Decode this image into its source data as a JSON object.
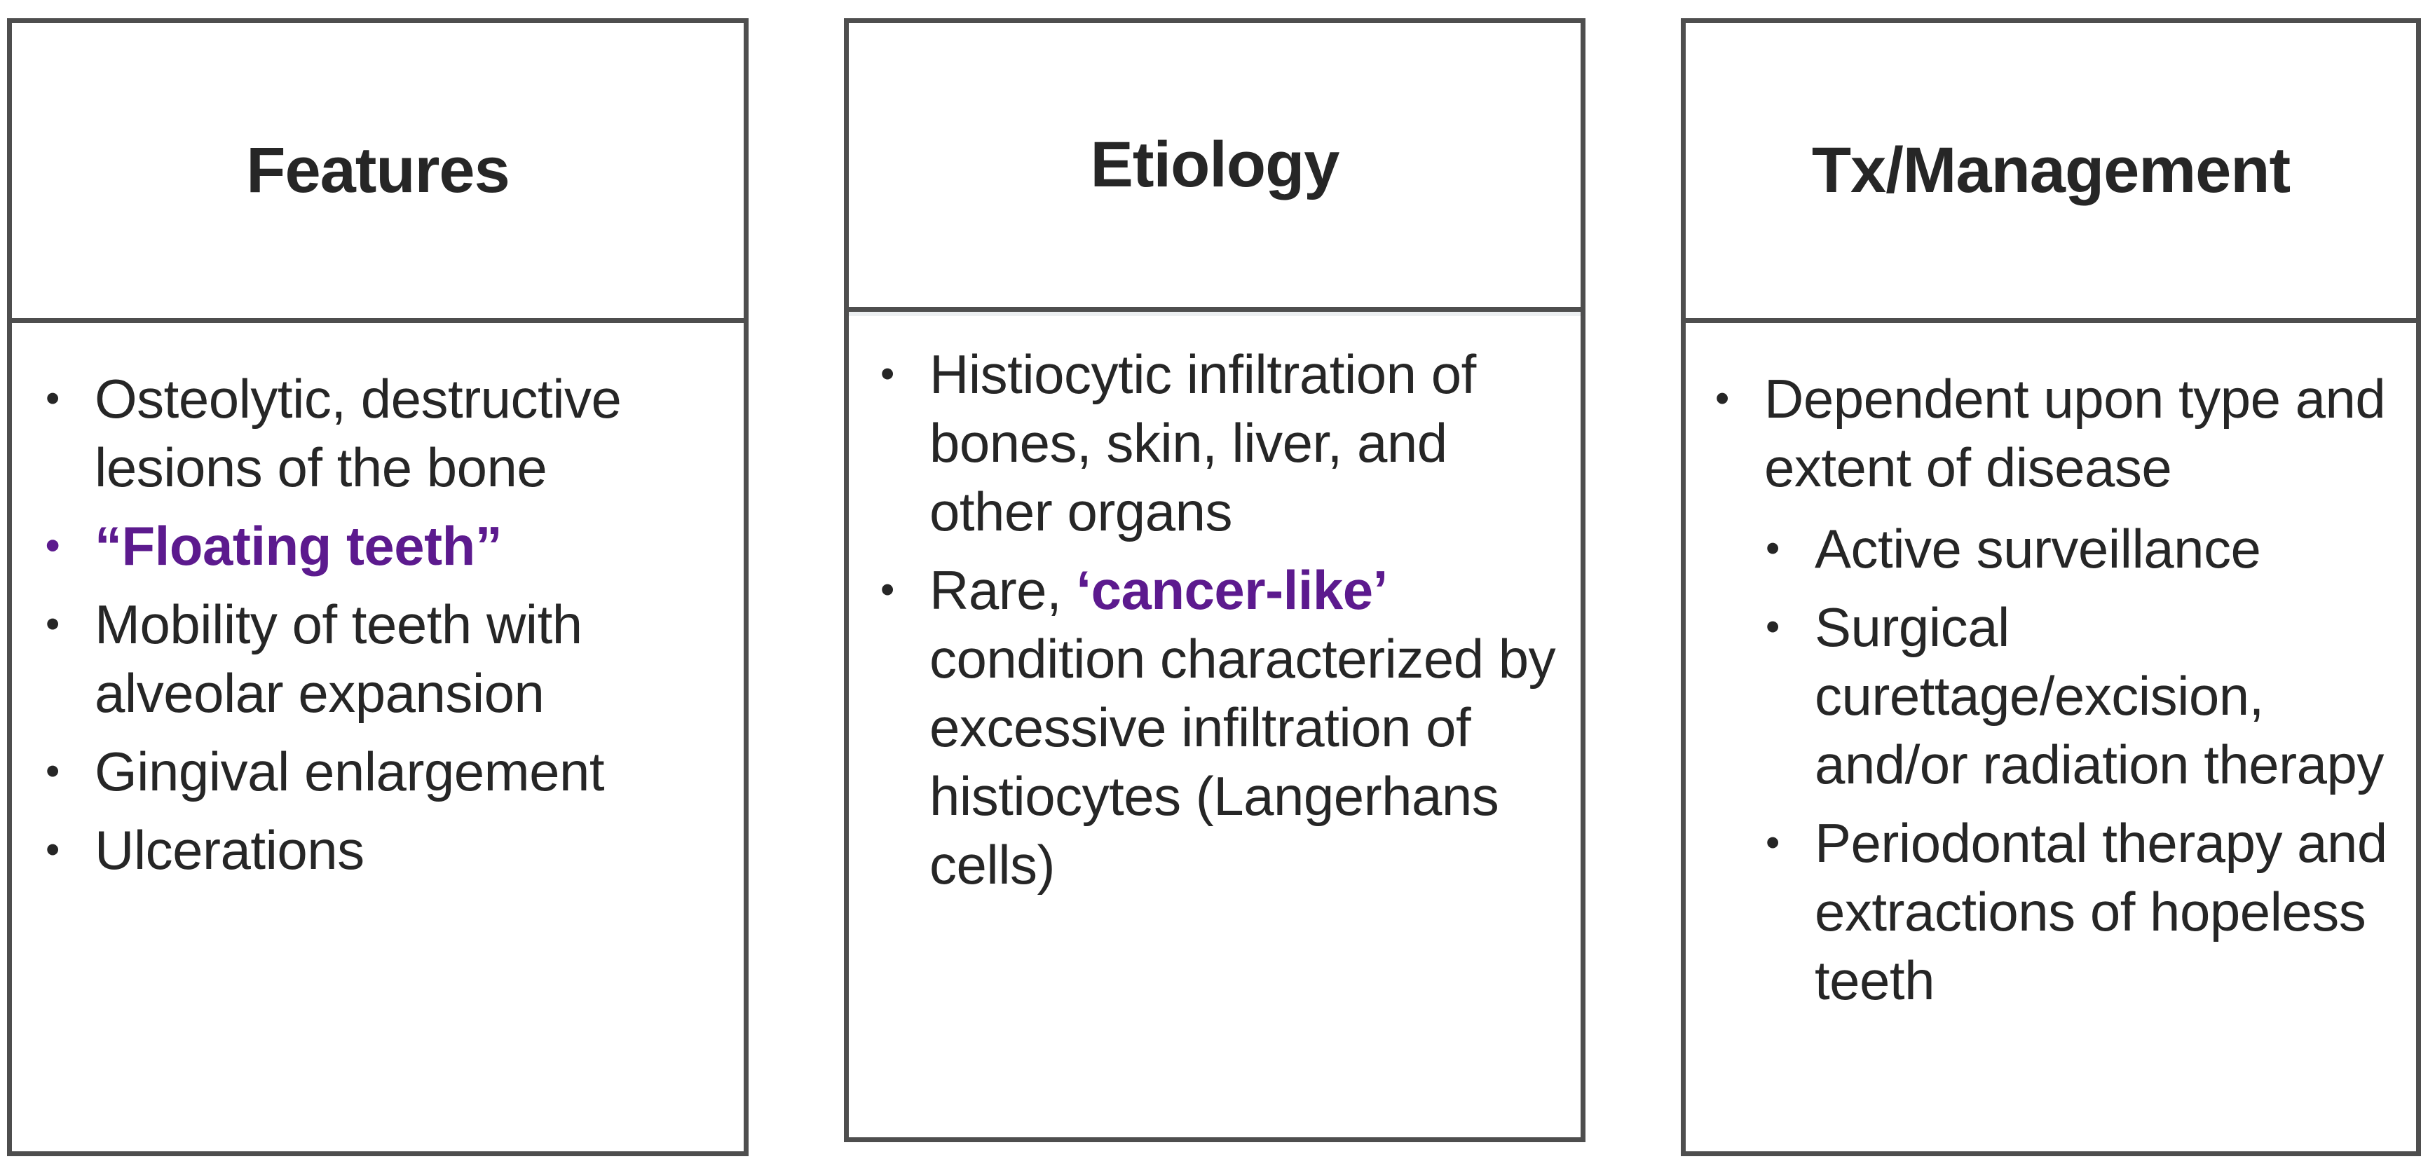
{
  "columns": [
    {
      "title": "Features",
      "items": [
        {
          "text": "Osteolytic, destructive lesions of the bone",
          "accent": false
        },
        {
          "text": "“Floating teeth”",
          "accent": true
        },
        {
          "text": "Mobility of teeth with alveolar expansion",
          "accent": false
        },
        {
          "text": "Gingival enlargement",
          "accent": false
        },
        {
          "text": "Ulcerations",
          "accent": false
        }
      ]
    },
    {
      "title": "Etiology",
      "items": [
        {
          "text": "Histiocytic infiltration of bones, skin, liver, and other organs"
        },
        {
          "prefix": "Rare, ",
          "highlight": "‘cancer-like’",
          "suffix": " condition characterized by excessive infiltration of histiocytes (Langerhans cells)"
        }
      ]
    },
    {
      "title": "Tx/Management",
      "intro": "Dependent upon type and extent of disease",
      "subitems": [
        "Active surveillance",
        "Surgical curettage/excision, and/or radiation therapy",
        "Periodontal therapy and extractions of hopeless teeth"
      ]
    }
  ],
  "colors": {
    "accent": "#5c1a8e",
    "text": "#262626",
    "border": "#4e4e4e"
  }
}
